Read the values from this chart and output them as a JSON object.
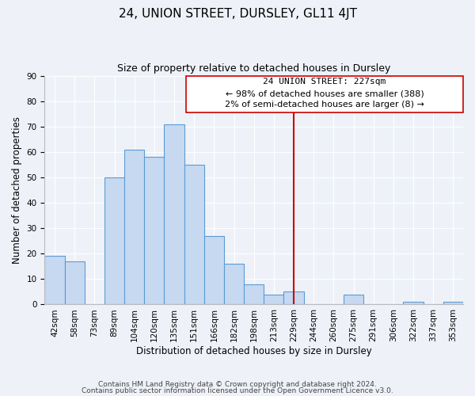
{
  "title": "24, UNION STREET, DURSLEY, GL11 4JT",
  "subtitle": "Size of property relative to detached houses in Dursley",
  "xlabel": "Distribution of detached houses by size in Dursley",
  "ylabel": "Number of detached properties",
  "bar_values": [
    19,
    17,
    0,
    50,
    61,
    58,
    71,
    55,
    27,
    16,
    8,
    4,
    5,
    0,
    0,
    4,
    0,
    0,
    1,
    0,
    1
  ],
  "x_labels": [
    "42sqm",
    "58sqm",
    "73sqm",
    "89sqm",
    "104sqm",
    "120sqm",
    "135sqm",
    "151sqm",
    "166sqm",
    "182sqm",
    "198sqm",
    "213sqm",
    "229sqm",
    "244sqm",
    "260sqm",
    "275sqm",
    "291sqm",
    "306sqm",
    "322sqm",
    "337sqm",
    "353sqm"
  ],
  "bar_color": "#c6d9f1",
  "bar_edge_color": "#5b9bd5",
  "vline_x_index": 12,
  "vline_color": "#cc0000",
  "ylim": [
    0,
    90
  ],
  "yticks": [
    0,
    10,
    20,
    30,
    40,
    50,
    60,
    70,
    80,
    90
  ],
  "annotation_title": "24 UNION STREET: 227sqm",
  "annotation_line1": "← 98% of detached houses are smaller (388)",
  "annotation_line2": "2% of semi-detached houses are larger (8) →",
  "footer_line1": "Contains HM Land Registry data © Crown copyright and database right 2024.",
  "footer_line2": "Contains public sector information licensed under the Open Government Licence v3.0.",
  "background_color": "#eef2f8",
  "grid_color": "#ffffff",
  "title_fontsize": 11,
  "subtitle_fontsize": 9,
  "axis_label_fontsize": 8.5,
  "tick_fontsize": 7.5,
  "annotation_fontsize": 8,
  "footer_fontsize": 6.5
}
